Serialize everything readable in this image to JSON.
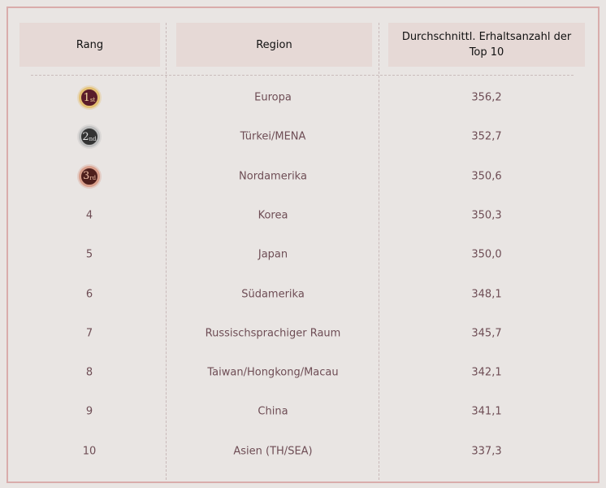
{
  "headers": {
    "rank": "Rang",
    "region": "Region",
    "value": "Durchschnittl. Erhaltsanzahl der Top 10"
  },
  "medals": [
    {
      "n": "1",
      "suf": "st",
      "bg": "#5a1c2a",
      "ring": "#e4c073",
      "fg": "#f3d9a0"
    },
    {
      "n": "2",
      "suf": "nd",
      "bg": "#333",
      "ring": "#bdbdbd",
      "fg": "#e0e0e0"
    },
    {
      "n": "3",
      "suf": "rd",
      "bg": "#4f1f1c",
      "ring": "#d9a08d",
      "fg": "#f0bfa8"
    }
  ],
  "rows": [
    {
      "rank": "1",
      "region": "Europa",
      "value": "356,2"
    },
    {
      "rank": "2",
      "region": "Türkei/MENA",
      "value": "352,7"
    },
    {
      "rank": "3",
      "region": "Nordamerika",
      "value": "350,6"
    },
    {
      "rank": "4",
      "region": "Korea",
      "value": "350,3"
    },
    {
      "rank": "5",
      "region": "Japan",
      "value": "350,0"
    },
    {
      "rank": "6",
      "region": "Südamerika",
      "value": "348,1"
    },
    {
      "rank": "7",
      "region": "Russischsprachiger Raum",
      "value": "345,7"
    },
    {
      "rank": "8",
      "region": "Taiwan/Hongkong/Macau",
      "value": "342,1"
    },
    {
      "rank": "9",
      "region": "China",
      "value": "341,1"
    },
    {
      "rank": "10",
      "region": "Asien (TH/SEA)",
      "value": "337,3"
    }
  ]
}
